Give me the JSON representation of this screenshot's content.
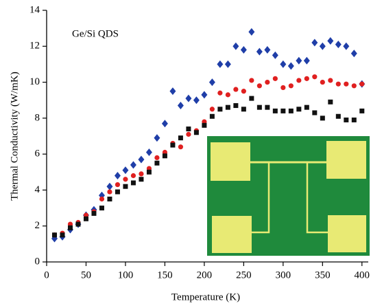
{
  "chart_data": {
    "type": "scatter",
    "annotation": "Ge/Si QDS",
    "x_label": "Temperature (K)",
    "y_label": "Thermal Conductivity (W/mK)",
    "x": [
      10,
      20,
      30,
      40,
      50,
      60,
      70,
      80,
      90,
      100,
      110,
      120,
      130,
      140,
      150,
      160,
      170,
      180,
      190,
      200,
      210,
      220,
      230,
      240,
      250,
      260,
      270,
      280,
      290,
      300,
      310,
      320,
      330,
      340,
      350,
      360,
      370,
      380,
      390,
      400
    ],
    "series": [
      {
        "color": "#1f3ea8",
        "marker": "diamond",
        "values": [
          1.3,
          1.4,
          1.8,
          2.1,
          2.6,
          2.9,
          3.7,
          4.2,
          4.8,
          5.1,
          5.4,
          5.7,
          6.1,
          6.9,
          7.7,
          9.5,
          8.7,
          9.1,
          9.0,
          9.3,
          10.0,
          11.0,
          11.0,
          12.0,
          11.8,
          12.8,
          11.7,
          11.8,
          11.5,
          11.0,
          10.9,
          11.2,
          11.2,
          12.2,
          12.0,
          12.3,
          12.1,
          12.0,
          11.6,
          9.9
        ]
      },
      {
        "color": "#e02020",
        "marker": "circle",
        "values": [
          1.5,
          1.6,
          2.1,
          2.2,
          2.6,
          2.8,
          3.5,
          3.9,
          4.3,
          4.6,
          4.8,
          4.9,
          5.2,
          5.8,
          6.1,
          6.6,
          6.4,
          7.1,
          7.3,
          7.8,
          8.5,
          9.4,
          9.3,
          9.6,
          9.5,
          10.1,
          9.8,
          10.0,
          10.2,
          9.7,
          9.8,
          10.1,
          10.2,
          10.3,
          10.0,
          10.1,
          9.9,
          9.9,
          9.8,
          9.9
        ]
      },
      {
        "color": "#111111",
        "marker": "square",
        "values": [
          1.5,
          1.5,
          1.9,
          2.1,
          2.4,
          2.7,
          3.0,
          3.5,
          3.9,
          4.2,
          4.4,
          4.6,
          5.0,
          5.5,
          5.9,
          6.5,
          6.9,
          7.4,
          7.2,
          7.6,
          8.1,
          8.5,
          8.6,
          8.7,
          8.5,
          9.1,
          8.6,
          8.6,
          8.4,
          8.4,
          8.4,
          8.5,
          8.6,
          8.3,
          8.0,
          8.9,
          8.1,
          7.9,
          7.9,
          8.4
        ]
      }
    ],
    "xlim": [
      0,
      408
    ],
    "xticks": [
      0,
      50,
      100,
      150,
      200,
      250,
      300,
      350,
      400
    ],
    "ylim": [
      0,
      14
    ],
    "yticks": [
      0,
      2,
      4,
      6,
      8,
      10,
      12,
      14
    ]
  }
}
